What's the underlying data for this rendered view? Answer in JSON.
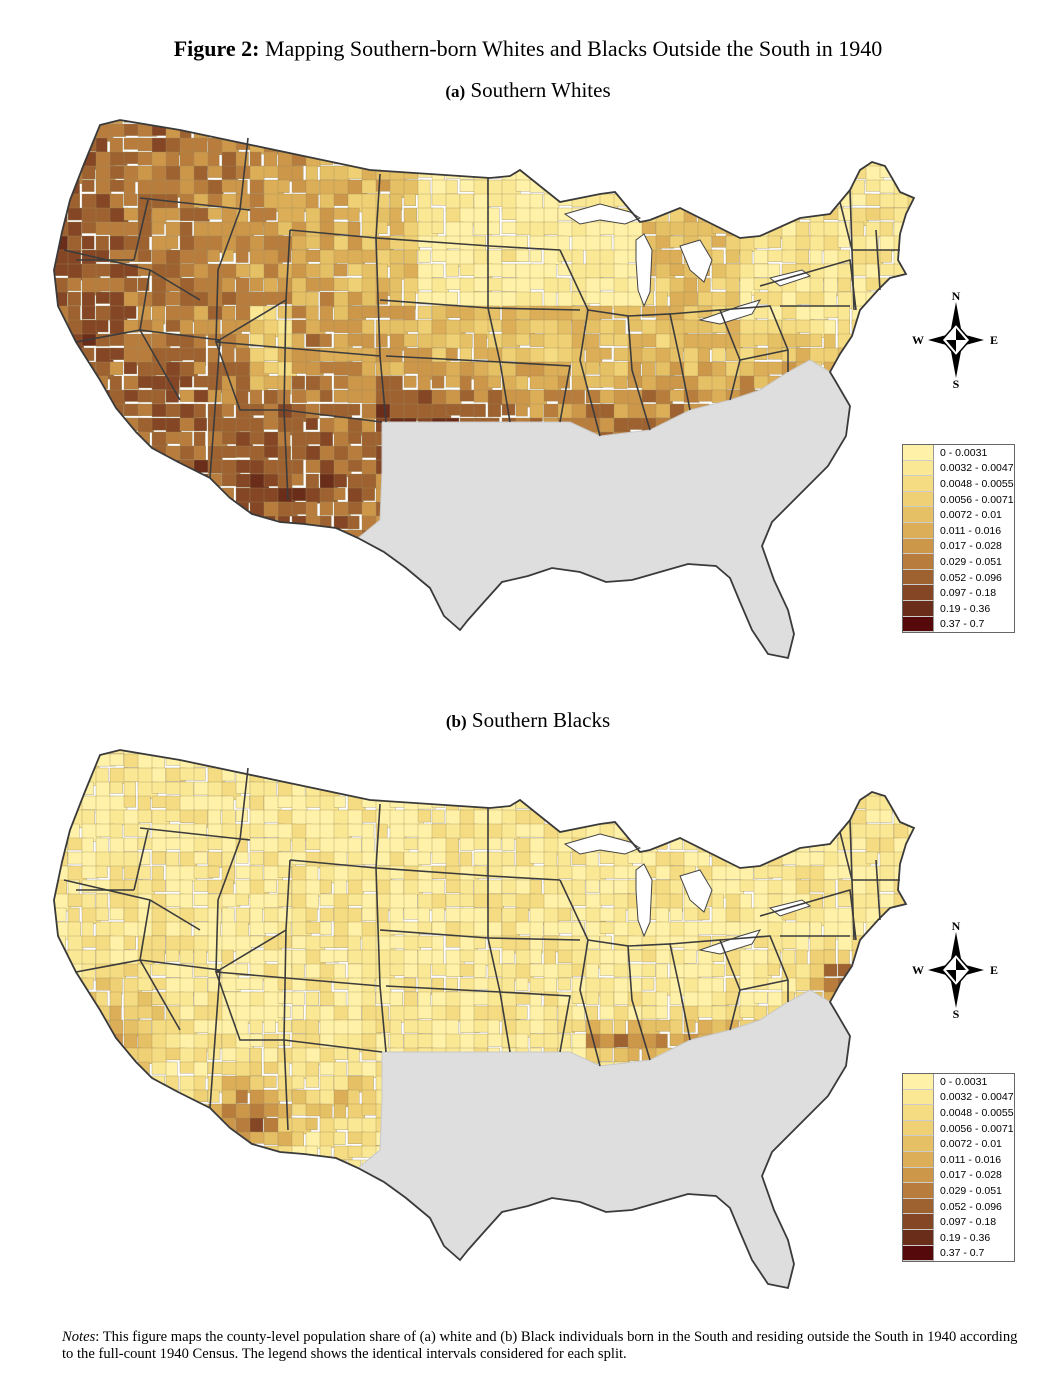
{
  "figure": {
    "label": "Figure 2:",
    "title": "Mapping Southern-born Whites and Blacks Outside the South in 1940"
  },
  "panels": [
    {
      "label": "(a)",
      "title": "Southern Whites",
      "palette_bias": "dark"
    },
    {
      "label": "(b)",
      "title": "Southern Blacks",
      "palette_bias": "light"
    }
  ],
  "legend": {
    "items": [
      {
        "range": "0 - 0.0031",
        "color": "#fff2a8"
      },
      {
        "range": "0.0032 - 0.0047",
        "color": "#fbe895"
      },
      {
        "range": "0.0048 - 0.0055",
        "color": "#f5dc82"
      },
      {
        "range": "0.0056 - 0.0071",
        "color": "#efd074"
      },
      {
        "range": "0.0072 - 0.01",
        "color": "#e6c065"
      },
      {
        "range": "0.011 - 0.016",
        "color": "#dcae57"
      },
      {
        "range": "0.017 - 0.028",
        "color": "#cd974a"
      },
      {
        "range": "0.029 - 0.051",
        "color": "#b87d3c"
      },
      {
        "range": "0.052 - 0.096",
        "color": "#9e6130"
      },
      {
        "range": "0.097 - 0.18",
        "color": "#854625"
      },
      {
        "range": "0.19 - 0.36",
        "color": "#6a2d1a"
      },
      {
        "range": "0.37 - 0.7",
        "color": "#55090b"
      }
    ]
  },
  "compass": {
    "n": "N",
    "s": "S",
    "e": "E",
    "w": "W"
  },
  "south_color": "#dedede",
  "notes": {
    "label": "Notes",
    "text": ": This figure maps the county-level population share of (a) white and (b) Black individuals born in the South and residing outside the South in 1940 according to the full-count 1940 Census. The legend shows the identical intervals considered for each split."
  }
}
